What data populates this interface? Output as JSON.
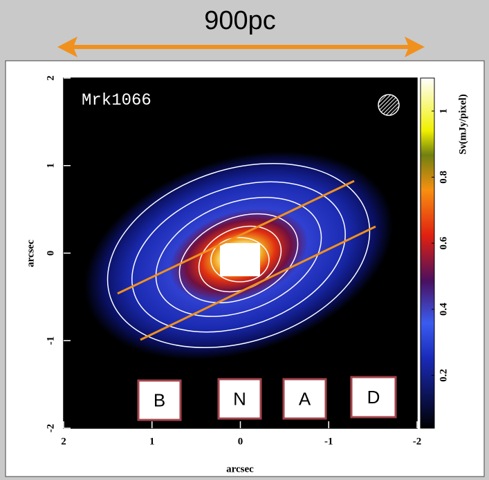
{
  "chart_data": {
    "type": "image",
    "title": "Mrk1066",
    "annotation": "900pc",
    "xlabel": "arcsec",
    "ylabel": "arcsec",
    "xlim": [
      2,
      -2
    ],
    "ylim": [
      -2,
      2
    ],
    "xticks": [
      2,
      1,
      0,
      -1,
      -2
    ],
    "yticks": [
      -2,
      -1,
      0,
      1,
      2
    ],
    "colorbar": {
      "label": "Sν(mJy/pixel)",
      "clim": [
        0.04,
        1.1
      ],
      "ticks": [
        0.2,
        0.4,
        0.6,
        0.8,
        1
      ]
    },
    "region_labels": [
      "B",
      "N",
      "A",
      "D"
    ],
    "line_color": "#f0911e",
    "box_color": "#a3434b"
  }
}
